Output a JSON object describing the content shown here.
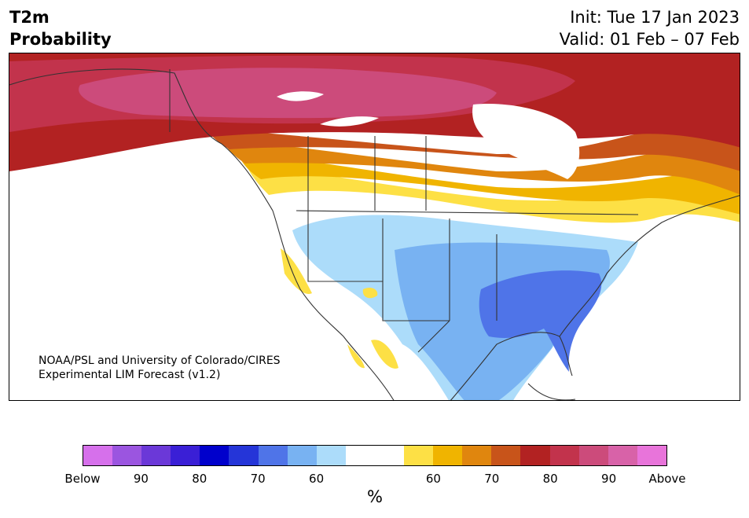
{
  "header": {
    "title_line1": "T2m",
    "title_line2": "Probability",
    "init": "Init: Tue 17 Jan 2023",
    "valid": "Valid: 01 Feb – 07 Feb"
  },
  "credit": {
    "line1": "NOAA/PSL and University of Colorado/CIRES",
    "line2": "Experimental LIM Forecast (v1.2)"
  },
  "colorbar": {
    "colors": [
      "#d670eb",
      "#9b55e0",
      "#6b38d8",
      "#3a1fd6",
      "#0000cc",
      "#2535d8",
      "#4f74e8",
      "#78b2f2",
      "#acdcfa",
      "#ffffff",
      "#ffffff",
      "#fde045",
      "#f0b400",
      "#e0860e",
      "#c8541a",
      "#b22222",
      "#c2334c",
      "#cc4b7b",
      "#d862a8",
      "#e874da"
    ],
    "tick_labels": [
      "Below",
      "90",
      "80",
      "70",
      "60",
      "60",
      "70",
      "80",
      "90",
      "Above"
    ],
    "unit": "%"
  },
  "legend_colors": {
    "above_60": "#fde045",
    "above_65": "#f0b400",
    "above_70": "#e0860e",
    "above_75": "#c8541a",
    "above_80": "#b22222",
    "above_85": "#c2334c",
    "above_90": "#cc4b7b",
    "below_60": "#acdcfa",
    "below_65": "#78b2f2",
    "below_70": "#4f74e8",
    "land_lines": "#333333"
  }
}
